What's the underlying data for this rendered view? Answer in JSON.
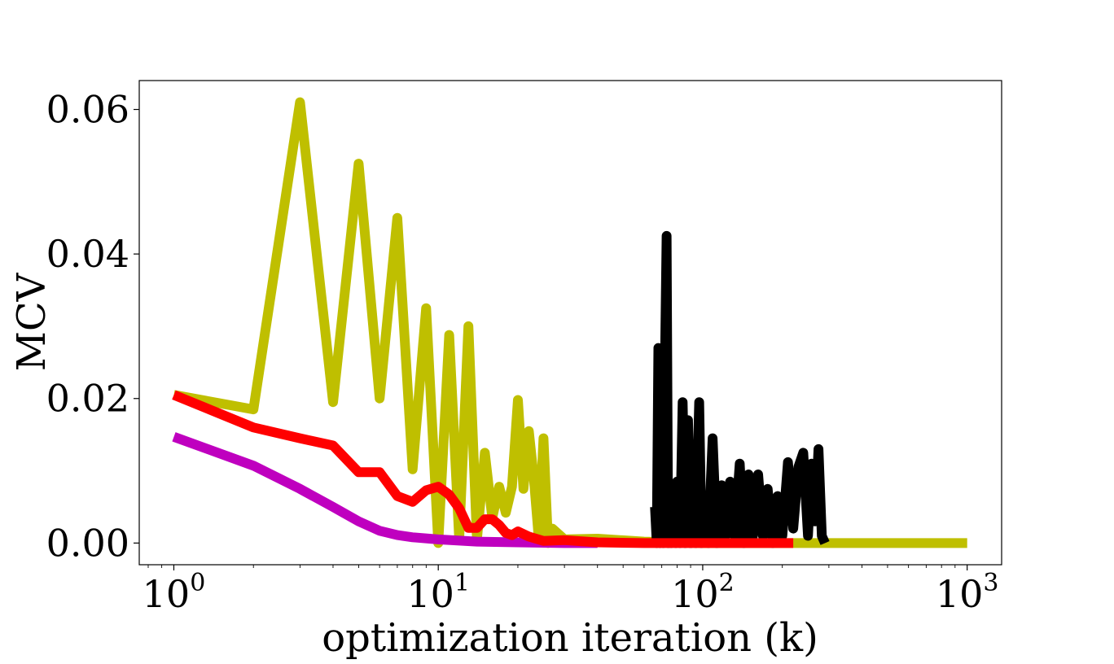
{
  "chart_data": {
    "type": "line",
    "title": "",
    "xlabel": "optimization iteration (k)",
    "ylabel": "MCV",
    "xscale": "log",
    "xlim": [
      0.74,
      1350
    ],
    "ylim": [
      -0.003,
      0.064
    ],
    "grid": false,
    "legend": "none",
    "x_ticks": [
      {
        "value": 1,
        "base": "10",
        "exp": "0"
      },
      {
        "value": 10,
        "base": "10",
        "exp": "1"
      },
      {
        "value": 100,
        "base": "10",
        "exp": "2"
      },
      {
        "value": 1000,
        "base": "10",
        "exp": "3"
      }
    ],
    "y_ticks": [
      {
        "value": 0.0,
        "label": "0.00"
      },
      {
        "value": 0.02,
        "label": "0.02"
      },
      {
        "value": 0.04,
        "label": "0.04"
      },
      {
        "value": 0.06,
        "label": "0.06"
      }
    ],
    "series": [
      {
        "color": "#bfbf00",
        "points": [
          [
            1,
            0.0205
          ],
          [
            2,
            0.0185
          ],
          [
            3,
            0.061
          ],
          [
            4,
            0.0195
          ],
          [
            5,
            0.0525
          ],
          [
            6,
            0.02
          ],
          [
            7,
            0.045
          ],
          [
            8,
            0.0102
          ],
          [
            9,
            0.0325
          ],
          [
            10,
            0.0
          ],
          [
            11,
            0.0288
          ],
          [
            12,
            0.0005
          ],
          [
            13,
            0.03
          ],
          [
            14,
            0.0005
          ],
          [
            15,
            0.0125
          ],
          [
            16,
            0.0035
          ],
          [
            17,
            0.0078
          ],
          [
            18,
            0.0042
          ],
          [
            19,
            0.0078
          ],
          [
            20,
            0.0198
          ],
          [
            21,
            0.0075
          ],
          [
            22,
            0.0155
          ],
          [
            23,
            0.0088
          ],
          [
            24,
            0.0005
          ],
          [
            25,
            0.0145
          ],
          [
            26,
            0.0
          ],
          [
            27,
            0.002
          ],
          [
            30,
            0.0005
          ],
          [
            40,
            0.0006
          ],
          [
            60,
            0.0002
          ],
          [
            100,
            0.0
          ],
          [
            200,
            0.0
          ],
          [
            500,
            0.0
          ],
          [
            1000,
            0.0
          ]
        ]
      },
      {
        "color": "#bf00bf",
        "points": [
          [
            1,
            0.0147
          ],
          [
            2,
            0.0107
          ],
          [
            3,
            0.0075
          ],
          [
            4,
            0.005
          ],
          [
            5,
            0.003
          ],
          [
            6,
            0.0017
          ],
          [
            7,
            0.0011
          ],
          [
            8,
            0.0008
          ],
          [
            10,
            0.0005
          ],
          [
            14,
            0.0002
          ],
          [
            20,
            0.0001
          ],
          [
            30,
            0.0
          ],
          [
            40,
            0.0
          ]
        ]
      },
      {
        "color": "#000000",
        "points": [
          [
            66,
            0.005
          ],
          [
            67,
            0.0
          ],
          [
            68,
            0.027
          ],
          [
            69,
            0.0
          ],
          [
            70,
            0.0265
          ],
          [
            71,
            0.0
          ],
          [
            72,
            0.025
          ],
          [
            73,
            0.0425
          ],
          [
            74,
            0.0
          ],
          [
            75,
            0.008
          ],
          [
            76,
            0.0
          ],
          [
            77,
            0.007
          ],
          [
            79,
            0.0
          ],
          [
            80,
            0.0085
          ],
          [
            82,
            0.0
          ],
          [
            84,
            0.0195
          ],
          [
            86,
            0.0
          ],
          [
            88,
            0.017
          ],
          [
            90,
            0.0
          ],
          [
            92,
            0.0075
          ],
          [
            94,
            0.0
          ],
          [
            97,
            0.0195
          ],
          [
            99,
            0.0
          ],
          [
            102,
            0.006
          ],
          [
            105,
            0.0
          ],
          [
            109,
            0.0145
          ],
          [
            113,
            0.0
          ],
          [
            118,
            0.008
          ],
          [
            122,
            0.001
          ],
          [
            127,
            0.0085
          ],
          [
            132,
            0.001
          ],
          [
            138,
            0.011
          ],
          [
            143,
            0.0
          ],
          [
            149,
            0.0095
          ],
          [
            155,
            0.001
          ],
          [
            162,
            0.0095
          ],
          [
            169,
            0.001
          ],
          [
            176,
            0.0075
          ],
          [
            184,
            0.0
          ],
          [
            192,
            0.0065
          ],
          [
            200,
            0.001
          ],
          [
            210,
            0.0112
          ],
          [
            220,
            0.002
          ],
          [
            230,
            0.0105
          ],
          [
            240,
            0.0125
          ],
          [
            250,
            0.001
          ],
          [
            258,
            0.011
          ],
          [
            266,
            0.003
          ],
          [
            274,
            0.013
          ],
          [
            282,
            0.001
          ],
          [
            290,
            0.0
          ]
        ]
      },
      {
        "color": "#ff0000",
        "points": [
          [
            1,
            0.0205
          ],
          [
            2,
            0.016
          ],
          [
            3,
            0.0145
          ],
          [
            4,
            0.0135
          ],
          [
            5,
            0.0098
          ],
          [
            6,
            0.0098
          ],
          [
            7,
            0.0065
          ],
          [
            8,
            0.0057
          ],
          [
            9,
            0.0073
          ],
          [
            10,
            0.0078
          ],
          [
            11,
            0.0067
          ],
          [
            12,
            0.0048
          ],
          [
            13,
            0.0021
          ],
          [
            14,
            0.0021
          ],
          [
            15,
            0.0033
          ],
          [
            16,
            0.0033
          ],
          [
            17,
            0.0025
          ],
          [
            18,
            0.0014
          ],
          [
            19,
            0.0011
          ],
          [
            20,
            0.0016
          ],
          [
            22,
            0.0009
          ],
          [
            25,
            0.0003
          ],
          [
            30,
            0.0004
          ],
          [
            40,
            0.0001
          ],
          [
            60,
            0.0
          ],
          [
            100,
            0.0
          ],
          [
            220,
            0.0
          ]
        ]
      }
    ]
  }
}
